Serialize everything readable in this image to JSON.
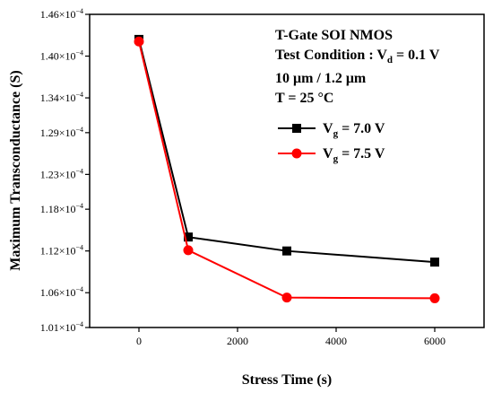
{
  "chart_data": {
    "type": "line",
    "xlabel": "Stress Time (s)",
    "ylabel": "Maximum Transconductance (S)",
    "xlim": [
      -1000,
      7000
    ],
    "ylim": [
      0.000101,
      0.000146
    ],
    "x_ticks": [
      0,
      2000,
      4000,
      6000
    ],
    "x_tick_labels": [
      "0",
      "2000",
      "4000",
      "6000"
    ],
    "y_ticks": [
      0.000101,
      0.000106,
      0.000112,
      0.000118,
      0.000123,
      0.000129,
      0.000134,
      0.00014,
      0.000146
    ],
    "y_tick_labels": [
      {
        "mantissa": "1.01×10",
        "exp": "−4"
      },
      {
        "mantissa": "1.06×10",
        "exp": "−4"
      },
      {
        "mantissa": "1.12×10",
        "exp": "−4"
      },
      {
        "mantissa": "1.18×10",
        "exp": "−4"
      },
      {
        "mantissa": "1.23×10",
        "exp": "−4"
      },
      {
        "mantissa": "1.29×10",
        "exp": "−4"
      },
      {
        "mantissa": "1.34×10",
        "exp": "−4"
      },
      {
        "mantissa": "1.40×10",
        "exp": "−4"
      },
      {
        "mantissa": "1.46×10",
        "exp": "−4"
      }
    ],
    "x": [
      0,
      1000,
      3000,
      6000
    ],
    "series": [
      {
        "name": {
          "pre": "V",
          "sub": "g",
          "post": " = 7.0 V"
        },
        "color": "#000000",
        "marker": "square",
        "values": [
          0.0001424,
          0.000114,
          0.000112,
          0.0001104
        ]
      },
      {
        "name": {
          "pre": "V",
          "sub": "g",
          "post": " = 7.5 V"
        },
        "color": "#ff0000",
        "marker": "circle",
        "values": [
          0.0001421,
          0.0001121,
          0.0001053,
          0.0001052
        ]
      }
    ],
    "annotations": {
      "line1": "T-Gate SOI NMOS",
      "line2_pre": "Test Condition : V",
      "line2_sub": "d",
      "line2_post": " = 0.1 V",
      "line3": "10 μm / 1.2 μm",
      "line4": "T = 25 °C"
    },
    "legend_position": "upper-right",
    "grid": false
  }
}
